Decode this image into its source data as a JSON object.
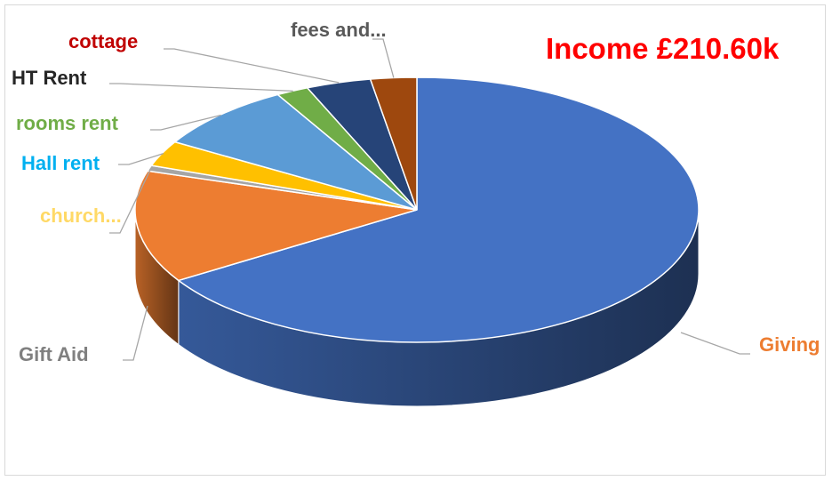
{
  "chart_data": {
    "type": "pie",
    "title": "Income £210.60k",
    "title_color": "#ff0000",
    "style": "3d-exploded",
    "slices": [
      {
        "label": "Giving",
        "value": 67.5,
        "color": "#4472c4",
        "label_color": "#ed7d31"
      },
      {
        "label": "Gift Aid",
        "value": 14.0,
        "color": "#ed7d31",
        "label_color": "#808080"
      },
      {
        "label": "church...",
        "value": 0.7,
        "color": "#a5a5a5",
        "label_color": "#ffd966"
      },
      {
        "label": "Hall rent",
        "value": 3.2,
        "color": "#ffc000",
        "label_color": "#00b0f0"
      },
      {
        "label": "rooms rent",
        "value": 8.4,
        "color": "#5b9bd5",
        "label_color": "#70ad47"
      },
      {
        "label": "HT Rent",
        "value": 1.9,
        "color": "#70ad47",
        "label_color": "#262626"
      },
      {
        "label": "cottage",
        "value": 3.8,
        "color": "#264478",
        "label_color": "#c00000"
      },
      {
        "label": "fees and...",
        "value": 2.7,
        "color": "#9e480e",
        "label_color": "#595959"
      }
    ]
  }
}
